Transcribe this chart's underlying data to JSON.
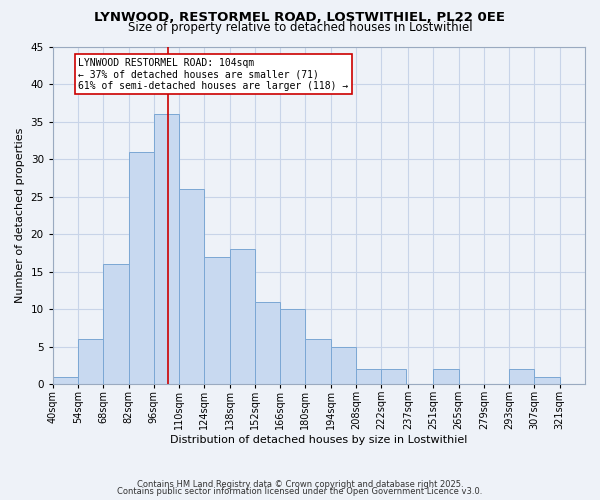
{
  "title": "LYNWOOD, RESTORMEL ROAD, LOSTWITHIEL, PL22 0EE",
  "subtitle": "Size of property relative to detached houses in Lostwithiel",
  "xlabel": "Distribution of detached houses by size in Lostwithiel",
  "ylabel": "Number of detached properties",
  "bins_left": [
    40,
    54,
    68,
    82,
    96,
    110,
    124,
    138,
    152,
    166,
    180,
    194,
    208,
    222,
    237,
    251,
    265,
    279,
    293,
    307
  ],
  "bin_width": 14,
  "counts": [
    1,
    6,
    16,
    31,
    36,
    26,
    17,
    18,
    11,
    10,
    6,
    5,
    2,
    2,
    0,
    2,
    0,
    0,
    2,
    1
  ],
  "tick_labels": [
    "40sqm",
    "54sqm",
    "68sqm",
    "82sqm",
    "96sqm",
    "110sqm",
    "124sqm",
    "138sqm",
    "152sqm",
    "166sqm",
    "180sqm",
    "194sqm",
    "208sqm",
    "222sqm",
    "237sqm",
    "251sqm",
    "265sqm",
    "279sqm",
    "293sqm",
    "307sqm",
    "321sqm"
  ],
  "bar_color": "#c8d9f0",
  "bar_edge_color": "#7ba7d4",
  "grid_color": "#c8d4e8",
  "vline_x": 104,
  "vline_color": "#cc0000",
  "annotation_text": "LYNWOOD RESTORMEL ROAD: 104sqm\n← 37% of detached houses are smaller (71)\n61% of semi-detached houses are larger (118) →",
  "annotation_box_color": "#ffffff",
  "annotation_box_edge": "#cc0000",
  "ylim": [
    0,
    45
  ],
  "yticks": [
    0,
    5,
    10,
    15,
    20,
    25,
    30,
    35,
    40,
    45
  ],
  "footnote1": "Contains HM Land Registry data © Crown copyright and database right 2025.",
  "footnote2": "Contains public sector information licensed under the Open Government Licence v3.0.",
  "bg_color": "#eef2f8",
  "title_fontsize": 9.5,
  "subtitle_fontsize": 8.5,
  "xlabel_fontsize": 8.0,
  "ylabel_fontsize": 8.0,
  "tick_fontsize": 7.0,
  "ytick_fontsize": 7.5,
  "footnote_fontsize": 6.0,
  "annotation_fontsize": 7.0
}
